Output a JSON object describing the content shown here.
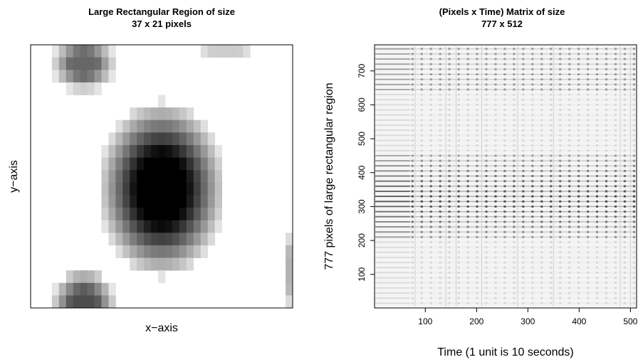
{
  "chart_data": [
    {
      "type": "heatmap",
      "title": "Large Rectangular Region of size",
      "subtitle": "37 x 21 pixels",
      "xlabel": "x−axis",
      "ylabel": "y−axis",
      "grid_size": [
        37,
        21
      ],
      "colormap": "grayscale (white = low, black = high)",
      "blobs": [
        {
          "cx": 18,
          "cy": 11,
          "rx": 9.5,
          "ry": 7.5,
          "peak": 1.0
        },
        {
          "cx": 7,
          "cy": 1,
          "rx": 5,
          "ry": 2.5,
          "peak": 0.6
        },
        {
          "cx": 7,
          "cy": 20.5,
          "rx": 5,
          "ry": 3.5,
          "peak": 0.7
        },
        {
          "cx": 27,
          "cy": 0,
          "rx": 5,
          "ry": 1,
          "peak": 0.2
        },
        {
          "cx": 36,
          "cy": 17.5,
          "rx": 1,
          "ry": 3.5,
          "peak": 0.3
        }
      ]
    },
    {
      "type": "heatmap",
      "title": "(Pixels x Time) Matrix of size",
      "subtitle": "777 x 512",
      "xlabel": "Time (1 unit is 10 seconds)",
      "ylabel": "777 pixels of large rectangular region",
      "xlim": [
        1,
        512
      ],
      "ylim": [
        1,
        777
      ],
      "x_ticks": [
        100,
        200,
        300,
        400,
        500
      ],
      "y_ticks": [
        100,
        200,
        300,
        400,
        500,
        600,
        700
      ],
      "colormap": "grayscale (white = low, black = high)",
      "dark_band_y_range": [
        200,
        450
      ],
      "vertical_mark_x": [
        80,
        140,
        160,
        210,
        280,
        350,
        480,
        500
      ]
    }
  ]
}
